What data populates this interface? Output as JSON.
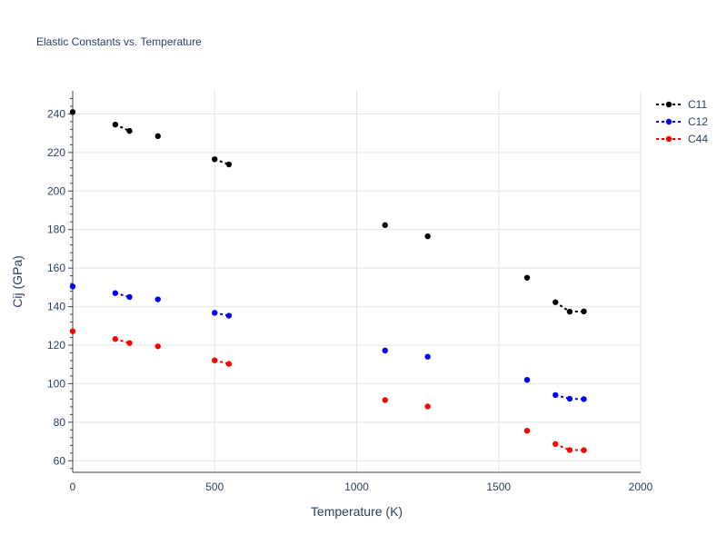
{
  "chart_data": {
    "type": "scatter",
    "title": "Elastic Constants vs. Temperature",
    "xlabel": "Temperature (K)",
    "ylabel": "Cij (GPa)",
    "xlim": [
      0,
      2000
    ],
    "ylim": [
      54,
      252
    ],
    "xticks": [
      0,
      500,
      1000,
      1500,
      2000
    ],
    "yticks": [
      60,
      80,
      100,
      120,
      140,
      160,
      180,
      200,
      220,
      240
    ],
    "grid": true,
    "legend_position": "top-right",
    "x": [
      0,
      150,
      200,
      300,
      500,
      550,
      1100,
      1250,
      1600,
      1700,
      1750,
      1800
    ],
    "series": [
      {
        "name": "C11",
        "color": "#000000",
        "values": [
          241,
          234.5,
          231.2,
          228.5,
          216.5,
          213.8,
          182.3,
          176.5,
          155,
          142.3,
          137.4,
          137.5
        ]
      },
      {
        "name": "C12",
        "color": "#0000ff",
        "values": [
          150.5,
          147,
          145,
          143.8,
          136.8,
          135.3,
          117.2,
          114,
          102,
          94.1,
          92.2,
          92.0
        ]
      },
      {
        "name": "C44",
        "color": "#ff0000",
        "values": [
          127.2,
          123.2,
          121.1,
          119.4,
          112.1,
          110.3,
          91.5,
          88.2,
          75.6,
          68.7,
          65.6,
          65.5
        ]
      }
    ]
  }
}
